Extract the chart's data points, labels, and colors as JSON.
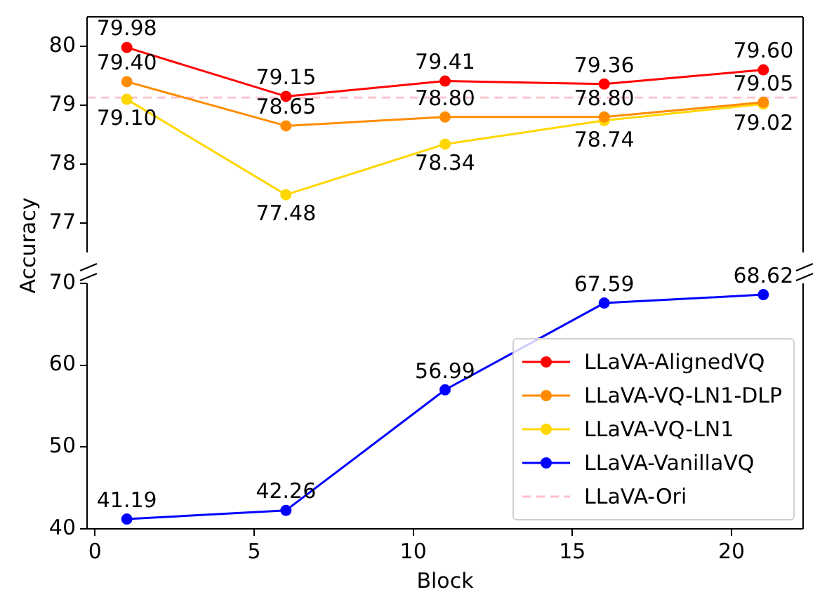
{
  "chart_data": [
    {
      "type": "line",
      "ylabel": "Accuracy",
      "x": [
        1,
        6,
        11,
        16,
        21
      ],
      "xlim": [
        -0.25,
        22.25
      ],
      "ylim": [
        76.5,
        80.5
      ],
      "yticks": [
        77,
        78,
        79,
        80
      ],
      "tick_labels": "y",
      "marker": "circle",
      "grid": false,
      "legend": "bottom right",
      "series": [
        {
          "name": "LLaVA-AlignedVQ",
          "color": "#ff0000",
          "values": [
            79.98,
            79.15,
            79.41,
            79.36,
            79.6
          ],
          "value_labels": [
            "79.98",
            "79.15",
            "79.41",
            "79.36",
            "79.60"
          ]
        },
        {
          "name": "LLaVA-VQ-LN1-DLP",
          "color": "#ff8c00",
          "values": [
            79.4,
            78.65,
            78.8,
            78.8,
            79.05
          ],
          "value_labels": [
            "79.40",
            "78.65",
            "78.80",
            "78.80",
            "79.05"
          ]
        },
        {
          "name": "LLaVA-VQ-LN1",
          "color": "#ffd700",
          "values": [
            79.1,
            77.48,
            78.34,
            78.74,
            79.02
          ],
          "value_labels": [
            "79.10",
            "77.48",
            "78.34",
            "78.74",
            "79.02"
          ]
        }
      ],
      "ref_lines": [
        {
          "axis": "y",
          "value": 79.13,
          "label": "LLaVA-Ori",
          "color": "#ffc0cb",
          "line_style": "dashed"
        }
      ]
    },
    {
      "type": "line",
      "xlabel": "Block",
      "x": [
        1,
        6,
        11,
        16,
        21
      ],
      "xlim": [
        -0.25,
        22.25
      ],
      "xticks": [
        0,
        5,
        10,
        15,
        20
      ],
      "ylim": [
        40,
        70
      ],
      "yticks": [
        40,
        50,
        60,
        70
      ],
      "marker": "circle",
      "grid": false,
      "legend": "bottom right",
      "series": [
        {
          "name": "LLaVA-VanillaVQ",
          "color": "#0000ff",
          "values": [
            41.19,
            42.26,
            56.99,
            67.59,
            68.62
          ],
          "value_labels": [
            "41.19",
            "42.26",
            "56.99",
            "67.59",
            "68.62"
          ]
        }
      ]
    }
  ]
}
